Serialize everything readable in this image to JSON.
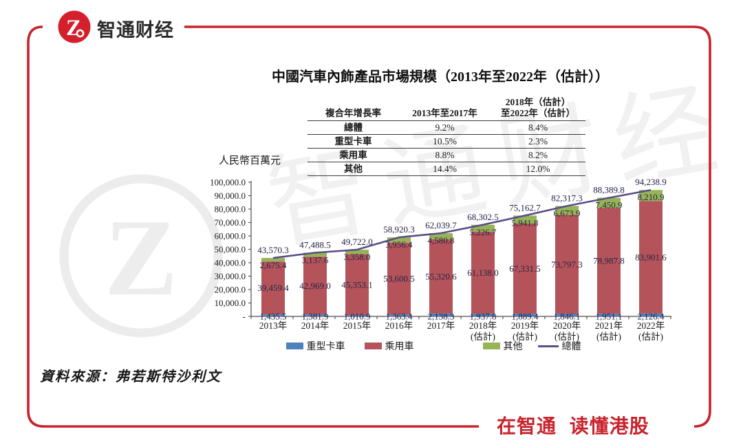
{
  "brand": {
    "logo_text": "智通财经",
    "logo_glyph": "Z",
    "slogan": "在智通 读懂港股"
  },
  "title": "中國汽車內飾產品市場規模（2013年至2022年（估計））",
  "source": "資料來源：弗若斯特沙利文",
  "cagr_table": {
    "col_headers": [
      "複合年增長率",
      "2013年至2017年",
      [
        "2018年（估計）",
        "至2022年（估計）"
      ]
    ],
    "rows": [
      {
        "label": "總體",
        "cagr_2013_2017": "9.2%",
        "cagr_2018_2022": "8.4%"
      },
      {
        "label": "重型卡車",
        "cagr_2013_2017": "10.5%",
        "cagr_2018_2022": "2.3%"
      },
      {
        "label": "乘用車",
        "cagr_2013_2017": "8.8%",
        "cagr_2018_2022": "8.2%"
      },
      {
        "label": "其他",
        "cagr_2013_2017": "14.4%",
        "cagr_2018_2022": "12.0%"
      }
    ]
  },
  "chart_data": {
    "type": "bar",
    "subtype": "stacked-bars-with-total-line",
    "title": "中國汽車內飾產品市場規模（2013年至2022年（估計））",
    "ylabel": "人民幣百萬元",
    "ylim": [
      0,
      100000
    ],
    "ytick_step": 10000,
    "grid": false,
    "legend_position": "bottom",
    "label_color": "#242447",
    "yticks": [
      {
        "value": 100000,
        "label": "100,000.0"
      },
      {
        "value": 90000,
        "label": "90,000.0"
      },
      {
        "value": 80000,
        "label": "80,000.0"
      },
      {
        "value": 70000,
        "label": "70,000.0"
      },
      {
        "value": 60000,
        "label": "60,000.0"
      },
      {
        "value": 50000,
        "label": "50,000.0"
      },
      {
        "value": 40000,
        "label": "40,000.0"
      },
      {
        "value": 30000,
        "label": "30,000.0"
      },
      {
        "value": 20000,
        "label": "20,000.0"
      },
      {
        "value": 10000,
        "label": "10,000.0"
      },
      {
        "value": 0,
        "label": "-"
      }
    ],
    "categories": [
      [
        "2013年"
      ],
      [
        "2014年"
      ],
      [
        "2015年"
      ],
      [
        "2016年"
      ],
      [
        "2017年"
      ],
      [
        "2018年",
        "(估計)"
      ],
      [
        "2019年",
        "(估計)"
      ],
      [
        "2020年",
        "(估計)"
      ],
      [
        "2021年",
        "(估計)"
      ],
      [
        "2022年",
        "(估計)"
      ]
    ],
    "series": [
      {
        "name": "重型卡車",
        "role": "bar",
        "color": "#4f81bd",
        "values": [
          1435.5,
          1381.9,
          1010.9,
          1363.4,
          2138.3,
          1937.8,
          1889.4,
          1846.1,
          1951.1,
          2126.4
        ]
      },
      {
        "name": "乘用車",
        "role": "bar",
        "color": "#b4545a",
        "values": [
          39459.4,
          42969.0,
          45353.1,
          53600.5,
          55320.6,
          61138.0,
          67331.5,
          73797.3,
          78987.8,
          83901.6
        ]
      },
      {
        "name": "其他",
        "role": "bar",
        "color": "#96b457",
        "values": [
          2675.4,
          3137.6,
          3358.0,
          3956.4,
          4580.8,
          5226.7,
          5941.8,
          6673.9,
          7450.9,
          8210.9
        ]
      },
      {
        "name": "總體",
        "role": "line",
        "color": "#5b4d87",
        "values": [
          43570.3,
          47488.5,
          49722.0,
          58920.3,
          62039.7,
          68302.5,
          75162.7,
          82317.3,
          88389.8,
          94238.9
        ]
      }
    ]
  },
  "colors": {
    "frame_red": "#c8232c",
    "logo_red": "#d41f2c",
    "slogan_red": "#c8232c",
    "axis_color": "#4a4a4a"
  }
}
